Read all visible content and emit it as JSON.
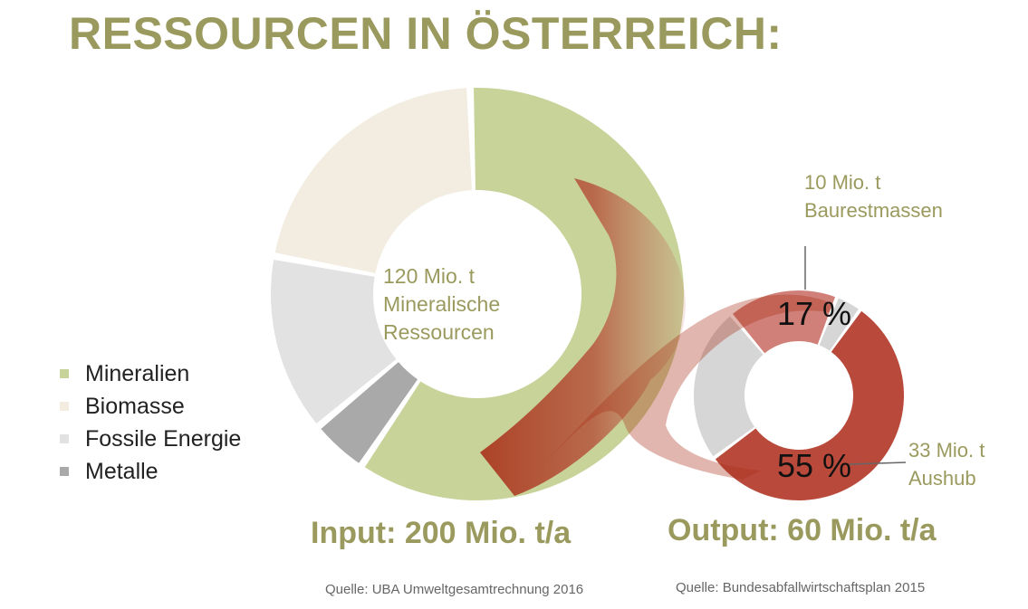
{
  "title": "RESSOURCEN IN ÖSTERREICH:",
  "colors": {
    "title": "#9b9a5e",
    "mineralien": "#c8d39a",
    "biomasse": "#f2ede0",
    "fossile": "#e2e2e2",
    "metalle": "#a9a9a9",
    "output_main": "#b94a3b",
    "output_light": "#d08078",
    "output_grey": "#d6d6d6",
    "flow": "#a82d17"
  },
  "legend": [
    {
      "label": "Mineralien",
      "color": "#c8d39a"
    },
    {
      "label": "Biomasse",
      "color": "#f2ede0"
    },
    {
      "label": "Fossile Energie",
      "color": "#e2e2e2"
    },
    {
      "label": "Metalle",
      "color": "#a9a9a9"
    }
  ],
  "input_center": {
    "line1": "120 Mio. t",
    "line2": "Mineralische",
    "line3": "Ressourcen"
  },
  "annotations": {
    "baurest_line1": "10 Mio. t",
    "baurest_line2": "Baurestmassen",
    "aushub_line1": "33 Mio. t",
    "aushub_line2": "Aushub",
    "pct_baurest": "17 %",
    "pct_aushub": "55 %"
  },
  "summary": {
    "input": "Input: 200 Mio. t/a",
    "output": "Output: 60 Mio. t/a"
  },
  "sources": {
    "input": "Quelle: UBA Umweltgesamtrechnung 2016",
    "output": "Quelle: Bundesabfallwirtschaftsplan 2015"
  },
  "chart_data": [
    {
      "type": "pie",
      "variant": "donut",
      "total_label": "Input: 200 Mio. t/a",
      "center_text": "120 Mio. t Mineralische Ressourcen",
      "slices": [
        {
          "name": "Mineralien",
          "value": 120,
          "color": "#c8d39a"
        },
        {
          "name": "Metalle",
          "value": 9,
          "color": "#a9a9a9"
        },
        {
          "name": "Fossile Energie",
          "value": 28,
          "color": "#e2e2e2"
        },
        {
          "name": "Biomasse",
          "value": 43,
          "color": "#f2ede0"
        }
      ]
    },
    {
      "type": "pie",
      "variant": "donut",
      "total_label": "Output: 60 Mio. t/a",
      "slices": [
        {
          "label": "17 %",
          "value": 17,
          "annotation": "10 Mio. t Baurestmassen",
          "color": "#d08078"
        },
        {
          "value": 4,
          "color": "#d6d6d6"
        },
        {
          "label": "55 %",
          "value": 55,
          "annotation": "33 Mio. t Aushub",
          "color": "#b94a3b"
        },
        {
          "value": 24,
          "color": "#d6d6d6"
        }
      ]
    }
  ]
}
